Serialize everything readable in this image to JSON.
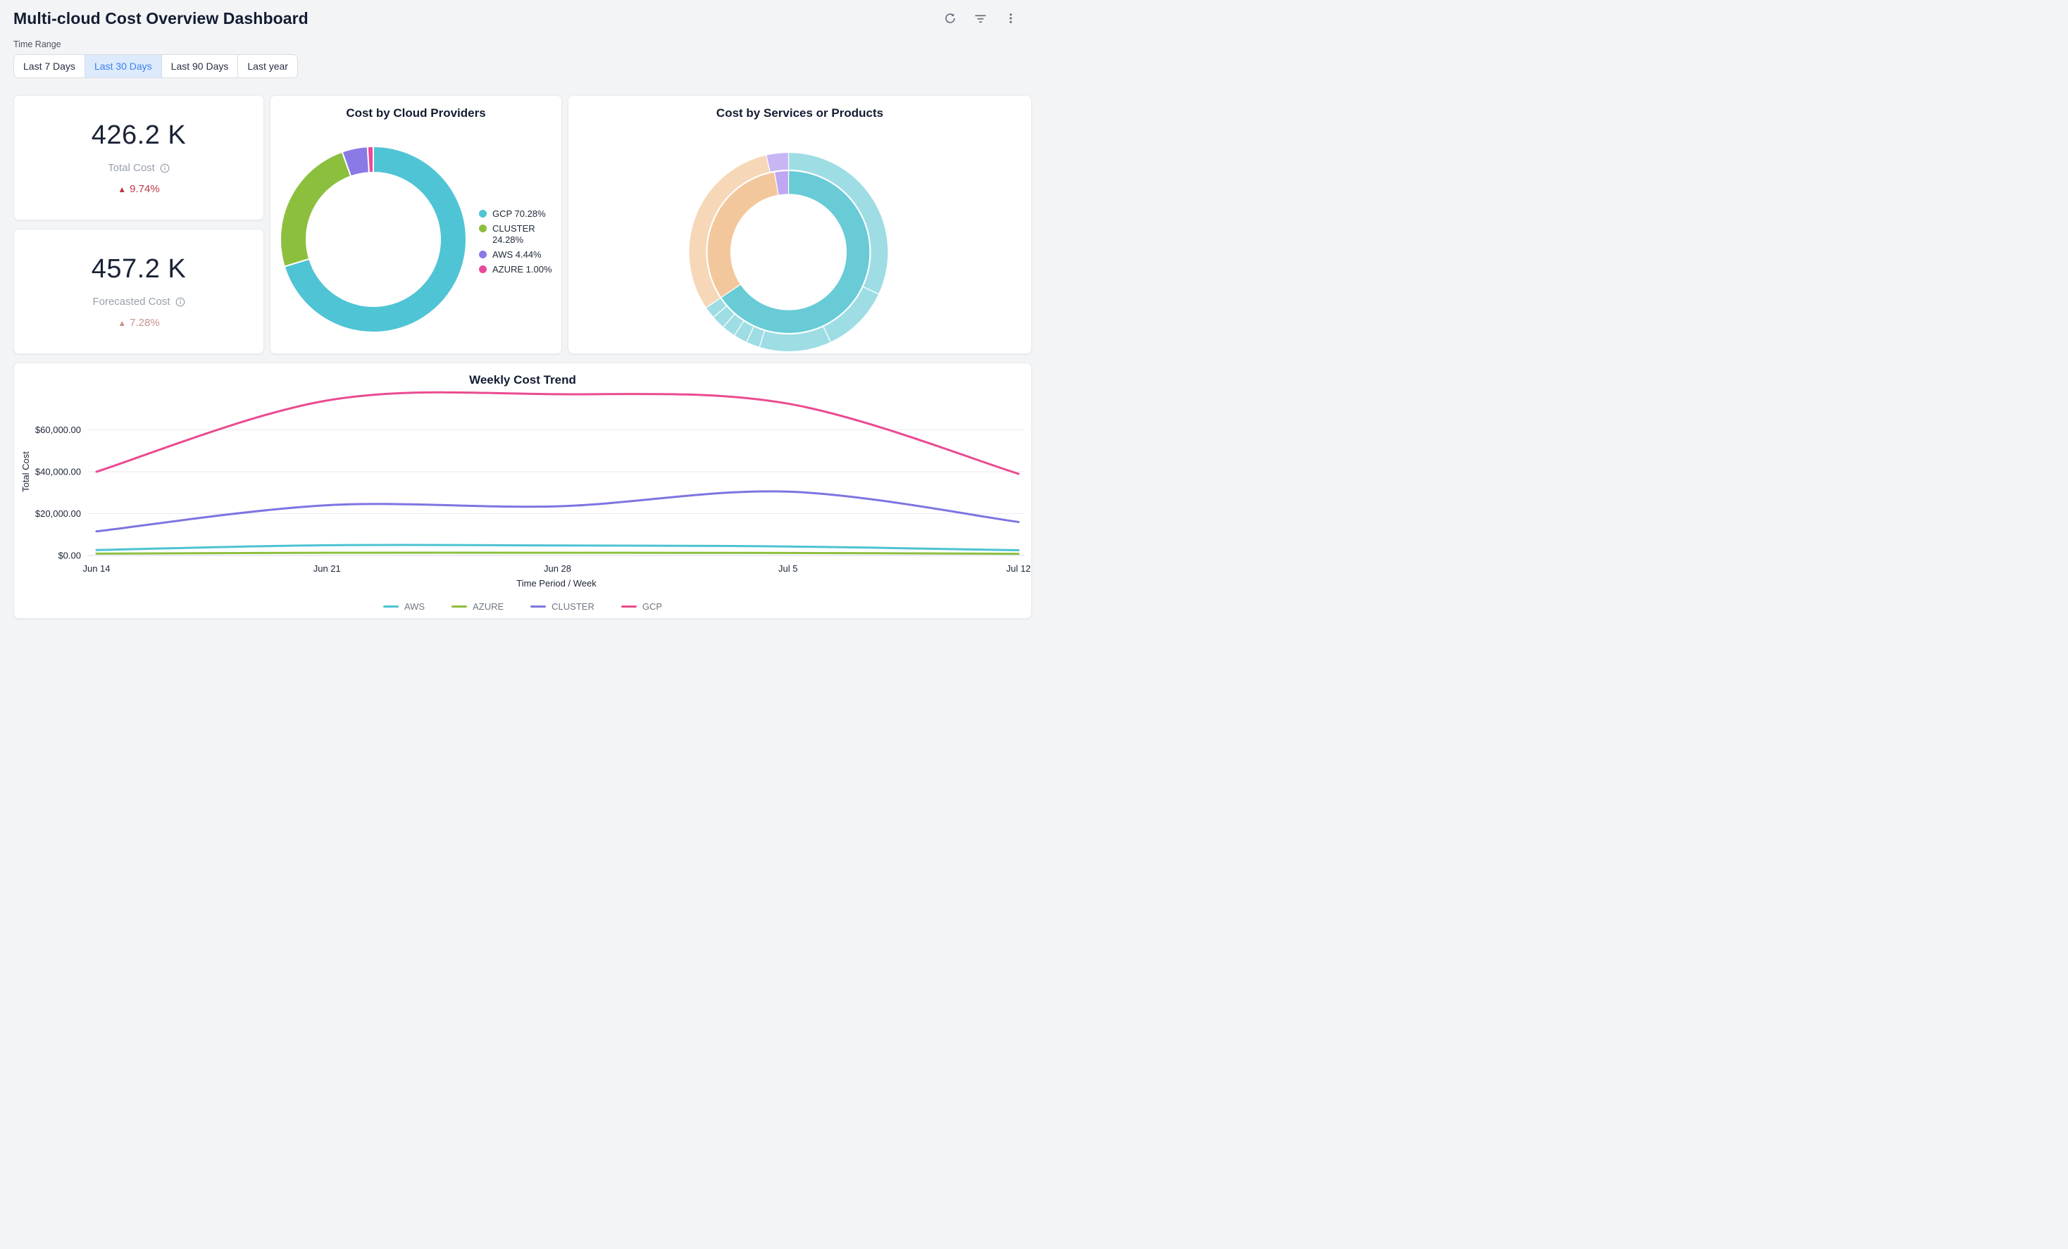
{
  "header": {
    "title": "Multi-cloud Cost Overview Dashboard"
  },
  "toolbar": {
    "icons": [
      "refresh-icon",
      "filter-icon",
      "kebab-menu-icon"
    ]
  },
  "time_range": {
    "label": "Time Range",
    "options": [
      "Last 7 Days",
      "Last 30 Days",
      "Last 90 Days",
      "Last year"
    ],
    "selected": "Last 30 Days"
  },
  "kpis": [
    {
      "value": "426.2 K",
      "label": "Total Cost",
      "arrow": "▲",
      "delta": "9.74%",
      "direction": "up",
      "delta_color": "#c23745"
    },
    {
      "value": "457.2 K",
      "label": "Forecasted Cost",
      "arrow": "▲",
      "delta": "7.28%",
      "direction": "up",
      "delta_color": "#c5938d"
    }
  ],
  "chart_data": [
    {
      "type": "pie",
      "subtype": "donut",
      "title": "Cost by Cloud Providers",
      "legend_position": "right",
      "segments": [
        {
          "label": "GCP",
          "pct": 70.28,
          "color": "#4fc4d5",
          "legend": "GCP 70.28%"
        },
        {
          "label": "CLUSTER",
          "pct": 24.28,
          "color": "#8dbf3e",
          "legend": "CLUSTER 24.28%"
        },
        {
          "label": "AWS",
          "pct": 4.44,
          "color": "#8a7ae6",
          "legend": "AWS 4.44%"
        },
        {
          "label": "AZURE",
          "pct": 1.0,
          "color": "#e8499b",
          "legend": "AZURE 1.00%"
        }
      ]
    },
    {
      "type": "pie",
      "subtype": "sunburst",
      "title": "Cost by Services or Products",
      "rings": {
        "inner": [
          {
            "sweep_deg": 236,
            "color": "#68cbd5"
          },
          {
            "sweep_deg": 114,
            "color": "#f3c79c"
          },
          {
            "sweep_deg": 10,
            "color": "#bfa7f3"
          }
        ],
        "outer": [
          {
            "sweep_deg": 115,
            "color": "#9edde4"
          },
          {
            "sweep_deg": 40,
            "color": "#9edde4"
          },
          {
            "sweep_deg": 42,
            "color": "#9edde4"
          },
          {
            "sweep_deg": 8,
            "color": "#9edde4"
          },
          {
            "sweep_deg": 8,
            "color": "#9edde4"
          },
          {
            "sweep_deg": 8,
            "color": "#9edde4"
          },
          {
            "sweep_deg": 8,
            "color": "#9edde4"
          },
          {
            "sweep_deg": 7,
            "color": "#9edde4"
          },
          {
            "sweep_deg": 111,
            "color": "#f6d7b7"
          },
          {
            "sweep_deg": 13,
            "color": "#c8b6f4"
          }
        ]
      }
    },
    {
      "type": "line",
      "title": "Weekly Cost Trend",
      "xlabel": "Time Period / Week",
      "ylabel": "Total Cost",
      "x": [
        "Jun 14",
        "Jun 21",
        "Jun 28",
        "Jul 5",
        "Jul 12"
      ],
      "ylim": [
        0,
        80000
      ],
      "grid": true,
      "legend_position": "bottom",
      "yticks": [
        {
          "value": 0,
          "label": "$0.00"
        },
        {
          "value": 20000,
          "label": "$20,000.00"
        },
        {
          "value": 40000,
          "label": "$40,000.00"
        },
        {
          "value": 60000,
          "label": "$60,000.00"
        }
      ],
      "series": [
        {
          "name": "AWS",
          "color": "#4cc3d2",
          "values": [
            2600,
            4900,
            4800,
            4300,
            2500
          ]
        },
        {
          "name": "AZURE",
          "color": "#8dbf3e",
          "values": [
            900,
            1300,
            1300,
            1200,
            800
          ]
        },
        {
          "name": "CLUSTER",
          "color": "#7d74e2",
          "values": [
            11500,
            24000,
            23500,
            30500,
            16000
          ]
        },
        {
          "name": "GCP",
          "color": "#ea4b90",
          "values": [
            40000,
            74000,
            77000,
            72500,
            39000
          ]
        }
      ]
    }
  ]
}
